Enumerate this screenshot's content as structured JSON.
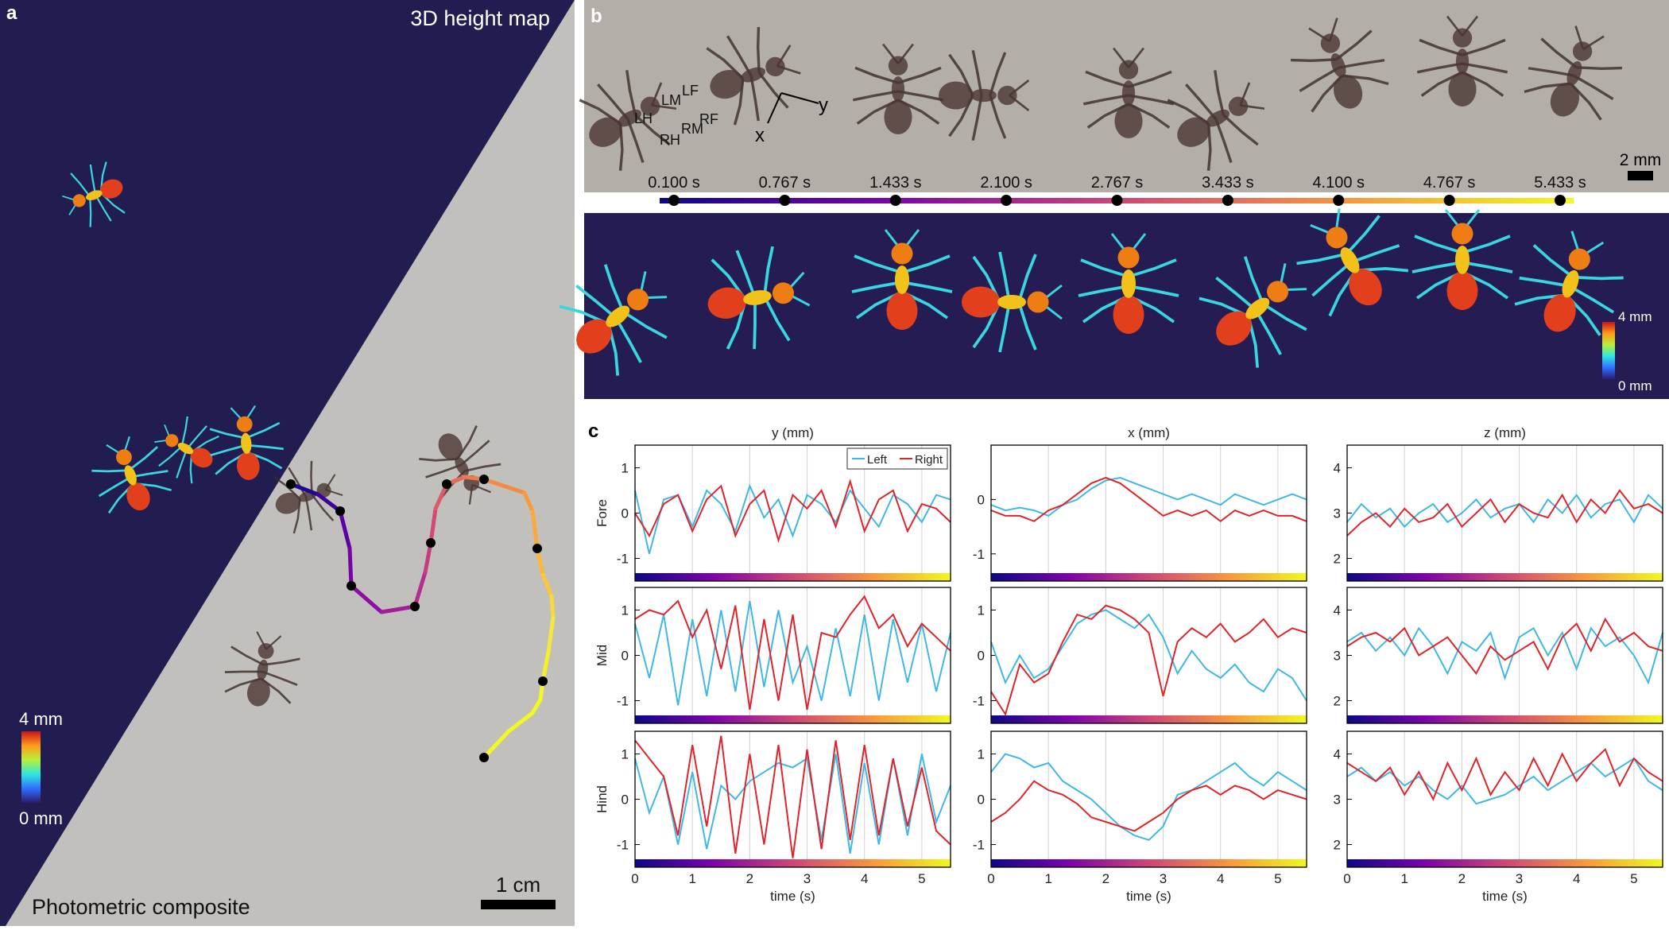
{
  "panel_a": {
    "label": "a",
    "top_text": "3D height map",
    "bottom_text": "Photometric composite",
    "scale_bar": "1 cm",
    "colorbar": {
      "max": "4 mm",
      "min": "0 mm"
    }
  },
  "panel_b": {
    "label": "b",
    "legs": [
      "LF",
      "LM",
      "LH",
      "RF",
      "RM",
      "RH"
    ],
    "axes": [
      "y",
      "x"
    ],
    "scale_bar": "2 mm",
    "times": [
      "0.100 s",
      "0.767 s",
      "1.433 s",
      "2.100 s",
      "2.767 s",
      "3.433 s",
      "4.100 s",
      "4.767 s",
      "5.433 s"
    ],
    "colorbar": {
      "max": "4 mm",
      "min": "0 mm"
    }
  },
  "panel_c": {
    "label": "c"
  },
  "chart_data": [
    {
      "type": "line",
      "title": "y (mm)",
      "ylabel": "Fore",
      "x": [
        0,
        0.25,
        0.5,
        0.75,
        1,
        1.25,
        1.5,
        1.75,
        2,
        2.25,
        2.5,
        2.75,
        3,
        3.25,
        3.5,
        3.75,
        4,
        4.25,
        4.5,
        4.75,
        5,
        5.25,
        5.5
      ],
      "xlim": [
        0,
        5.5
      ],
      "xticks": [
        0,
        1,
        2,
        3,
        4,
        5
      ],
      "xticklabels": false,
      "ylim": [
        -1.5,
        1.5
      ],
      "yticks": [
        -1,
        0,
        1
      ],
      "grid": "x",
      "legend": "upper right",
      "series": [
        {
          "name": "Left",
          "color": "#3fb8e6",
          "values": [
            0.5,
            -0.9,
            0.3,
            0.4,
            -0.3,
            0.5,
            0.2,
            -0.4,
            0.6,
            -0.1,
            0.3,
            -0.5,
            0.4,
            0.2,
            -0.2,
            0.5,
            0.1,
            -0.3,
            0.4,
            0.2,
            -0.2,
            0.4,
            0.3
          ]
        },
        {
          "name": "Right",
          "color": "#e0242b",
          "values": [
            0,
            -0.5,
            0.2,
            0.4,
            -0.4,
            0.3,
            0.6,
            -0.5,
            0.2,
            0.5,
            -0.6,
            0.4,
            0.1,
            0.5,
            -0.3,
            0.7,
            -0.4,
            0.3,
            0.5,
            -0.4,
            0.2,
            0.1,
            -0.2
          ]
        }
      ]
    },
    {
      "type": "line",
      "title": "x (mm)",
      "x": [
        0,
        0.25,
        0.5,
        0.75,
        1,
        1.25,
        1.5,
        1.75,
        2,
        2.25,
        2.5,
        2.75,
        3,
        3.25,
        3.5,
        3.75,
        4,
        4.25,
        4.5,
        4.75,
        5,
        5.25,
        5.5
      ],
      "xlim": [
        0,
        5.5
      ],
      "xticks": [
        0,
        1,
        2,
        3,
        4,
        5
      ],
      "xticklabels": false,
      "ylim": [
        -1.5,
        1.0
      ],
      "yticks": [
        -1,
        0
      ],
      "grid": "x",
      "series": [
        {
          "color": "#3fb8e6",
          "values": [
            -0.1,
            -0.2,
            -0.15,
            -0.2,
            -0.3,
            -0.1,
            0.0,
            0.2,
            0.35,
            0.4,
            0.3,
            0.2,
            0.1,
            0.0,
            0.1,
            0.0,
            -0.1,
            0.1,
            0.0,
            -0.1,
            0.0,
            0.1,
            0.0
          ]
        },
        {
          "color": "#e0242b",
          "values": [
            -0.2,
            -0.3,
            -0.3,
            -0.4,
            -0.2,
            -0.1,
            0.1,
            0.3,
            0.4,
            0.3,
            0.1,
            -0.1,
            -0.3,
            -0.2,
            -0.3,
            -0.2,
            -0.4,
            -0.2,
            -0.3,
            -0.2,
            -0.3,
            -0.3,
            -0.4
          ]
        }
      ]
    },
    {
      "type": "line",
      "title": "z (mm)",
      "x": [
        0,
        0.25,
        0.5,
        0.75,
        1,
        1.25,
        1.5,
        1.75,
        2,
        2.25,
        2.5,
        2.75,
        3,
        3.25,
        3.5,
        3.75,
        4,
        4.25,
        4.5,
        4.75,
        5,
        5.25,
        5.5
      ],
      "xlim": [
        0,
        5.5
      ],
      "xticks": [
        0,
        1,
        2,
        3,
        4,
        5
      ],
      "xticklabels": false,
      "ylim": [
        1.5,
        4.5
      ],
      "yticks": [
        2,
        3,
        4
      ],
      "grid": "x",
      "series": [
        {
          "color": "#3fb8e6",
          "values": [
            2.8,
            3.2,
            2.9,
            3.1,
            2.7,
            3.0,
            3.2,
            2.8,
            3.0,
            3.3,
            2.9,
            3.1,
            3.2,
            2.8,
            3.3,
            3.0,
            3.4,
            2.9,
            3.2,
            3.3,
            2.8,
            3.4,
            3.1
          ]
        },
        {
          "color": "#e0242b",
          "values": [
            2.5,
            2.8,
            3.0,
            2.7,
            3.1,
            2.8,
            2.9,
            3.2,
            2.7,
            3.0,
            3.3,
            2.8,
            3.2,
            3.0,
            2.9,
            3.4,
            2.8,
            3.3,
            3.0,
            3.5,
            3.1,
            3.2,
            3.0
          ]
        }
      ]
    },
    {
      "type": "line",
      "ylabel": "Mid",
      "x": [
        0,
        0.25,
        0.5,
        0.75,
        1,
        1.25,
        1.5,
        1.75,
        2,
        2.25,
        2.5,
        2.75,
        3,
        3.25,
        3.5,
        3.75,
        4,
        4.25,
        4.5,
        4.75,
        5,
        5.25,
        5.5
      ],
      "xlim": [
        0,
        5.5
      ],
      "xticks": [
        0,
        1,
        2,
        3,
        4,
        5
      ],
      "xticklabels": false,
      "ylim": [
        -1.5,
        1.5
      ],
      "yticks": [
        -1,
        0,
        1
      ],
      "grid": "x",
      "series": [
        {
          "color": "#3fb8e6",
          "values": [
            0.7,
            -0.5,
            0.9,
            -1.1,
            0.8,
            -0.9,
            1.0,
            -0.8,
            1.2,
            -0.7,
            1.0,
            -0.6,
            0.2,
            -1.0,
            0.6,
            -0.9,
            0.9,
            -1.0,
            0.8,
            -0.6,
            0.7,
            -0.8,
            0.5
          ]
        },
        {
          "color": "#e0242b",
          "values": [
            0.8,
            1.0,
            0.9,
            1.2,
            0.4,
            1.0,
            -0.3,
            1.1,
            -1.2,
            0.8,
            -1.0,
            0.9,
            -1.2,
            0.5,
            0.4,
            0.9,
            1.3,
            0.6,
            0.9,
            0.2,
            0.7,
            0.4,
            0.1
          ]
        }
      ]
    },
    {
      "type": "line",
      "x": [
        0,
        0.25,
        0.5,
        0.75,
        1,
        1.25,
        1.5,
        1.75,
        2,
        2.25,
        2.5,
        2.75,
        3,
        3.25,
        3.5,
        3.75,
        4,
        4.25,
        4.5,
        4.75,
        5,
        5.25,
        5.5
      ],
      "xlim": [
        0,
        5.5
      ],
      "xticks": [
        0,
        1,
        2,
        3,
        4,
        5
      ],
      "xticklabels": false,
      "ylim": [
        -1.5,
        1.5
      ],
      "yticks": [
        -1,
        0,
        1
      ],
      "grid": "x",
      "series": [
        {
          "color": "#3fb8e6",
          "values": [
            0.3,
            -0.6,
            0.0,
            -0.5,
            -0.3,
            0.2,
            0.7,
            0.9,
            1.0,
            0.8,
            0.6,
            0.9,
            0.4,
            -0.4,
            0.1,
            -0.3,
            -0.5,
            -0.2,
            -0.6,
            -0.8,
            -0.3,
            -0.5,
            -1.0
          ]
        },
        {
          "color": "#e0242b",
          "values": [
            -0.8,
            -1.3,
            -0.2,
            -0.6,
            -0.4,
            0.3,
            0.9,
            0.8,
            1.1,
            1.0,
            0.8,
            0.5,
            -0.9,
            0.3,
            0.6,
            0.4,
            0.7,
            0.3,
            0.5,
            0.8,
            0.4,
            0.6,
            0.5
          ]
        }
      ]
    },
    {
      "type": "line",
      "x": [
        0,
        0.25,
        0.5,
        0.75,
        1,
        1.25,
        1.5,
        1.75,
        2,
        2.25,
        2.5,
        2.75,
        3,
        3.25,
        3.5,
        3.75,
        4,
        4.25,
        4.5,
        4.75,
        5,
        5.25,
        5.5
      ],
      "xlim": [
        0,
        5.5
      ],
      "xticks": [
        0,
        1,
        2,
        3,
        4,
        5
      ],
      "xticklabels": false,
      "ylim": [
        1.5,
        4.5
      ],
      "yticks": [
        2,
        3,
        4
      ],
      "grid": "x",
      "series": [
        {
          "color": "#3fb8e6",
          "values": [
            3.3,
            3.5,
            3.1,
            3.4,
            3.0,
            3.6,
            3.2,
            2.6,
            3.3,
            3.1,
            3.5,
            2.5,
            3.4,
            3.6,
            3.0,
            3.5,
            2.7,
            3.6,
            3.2,
            3.4,
            3.0,
            2.4,
            3.5
          ]
        },
        {
          "color": "#e0242b",
          "values": [
            3.2,
            3.4,
            3.5,
            3.3,
            3.6,
            3.0,
            3.2,
            3.4,
            3.0,
            2.6,
            3.2,
            2.9,
            3.1,
            3.3,
            2.7,
            3.4,
            3.7,
            3.1,
            3.8,
            3.3,
            3.5,
            3.2,
            3.1
          ]
        }
      ]
    },
    {
      "type": "line",
      "ylabel": "Hind",
      "xlabel": "time (s)",
      "x": [
        0,
        0.25,
        0.5,
        0.75,
        1,
        1.25,
        1.5,
        1.75,
        2,
        2.25,
        2.5,
        2.75,
        3,
        3.25,
        3.5,
        3.75,
        4,
        4.25,
        4.5,
        4.75,
        5,
        5.25,
        5.5
      ],
      "xlim": [
        0,
        5.5
      ],
      "xticks": [
        0,
        1,
        2,
        3,
        4,
        5
      ],
      "ylim": [
        -1.5,
        1.5
      ],
      "yticks": [
        -1,
        0,
        1
      ],
      "grid": "x",
      "series": [
        {
          "color": "#3fb8e6",
          "values": [
            0.9,
            -0.3,
            0.5,
            -1.0,
            0.6,
            -1.1,
            0.3,
            0.0,
            0.4,
            0.6,
            0.8,
            0.7,
            0.9,
            -0.9,
            1.0,
            -1.2,
            0.8,
            -1.0,
            0.9,
            -0.8,
            1.0,
            -0.5,
            0.3
          ]
        },
        {
          "color": "#e0242b",
          "values": [
            1.3,
            0.9,
            0.5,
            -0.8,
            1.2,
            -0.6,
            1.4,
            -1.2,
            1.0,
            -1.0,
            1.2,
            -1.3,
            1.1,
            -1.1,
            1.3,
            -0.9,
            1.2,
            -0.8,
            0.9,
            -0.6,
            0.7,
            -0.7,
            -1.0
          ]
        }
      ]
    },
    {
      "type": "line",
      "xlabel": "time (s)",
      "x": [
        0,
        0.25,
        0.5,
        0.75,
        1,
        1.25,
        1.5,
        1.75,
        2,
        2.25,
        2.5,
        2.75,
        3,
        3.25,
        3.5,
        3.75,
        4,
        4.25,
        4.5,
        4.75,
        5,
        5.25,
        5.5
      ],
      "xlim": [
        0,
        5.5
      ],
      "xticks": [
        0,
        1,
        2,
        3,
        4,
        5
      ],
      "ylim": [
        -1.5,
        1.5
      ],
      "yticks": [
        -1,
        0,
        1
      ],
      "grid": "x",
      "series": [
        {
          "color": "#3fb8e6",
          "values": [
            0.6,
            1.0,
            0.9,
            0.7,
            0.8,
            0.4,
            0.2,
            0.0,
            -0.3,
            -0.6,
            -0.8,
            -0.9,
            -0.6,
            0.1,
            0.2,
            0.4,
            0.6,
            0.8,
            0.5,
            0.3,
            0.6,
            0.4,
            0.2
          ]
        },
        {
          "color": "#e0242b",
          "values": [
            -0.5,
            -0.3,
            0.0,
            0.4,
            0.2,
            0.1,
            -0.1,
            -0.4,
            -0.5,
            -0.6,
            -0.7,
            -0.5,
            -0.3,
            0.0,
            0.2,
            0.3,
            0.1,
            0.3,
            0.2,
            0.0,
            0.2,
            0.1,
            0.0
          ]
        }
      ]
    },
    {
      "type": "line",
      "xlabel": "time (s)",
      "x": [
        0,
        0.25,
        0.5,
        0.75,
        1,
        1.25,
        1.5,
        1.75,
        2,
        2.25,
        2.5,
        2.75,
        3,
        3.25,
        3.5,
        3.75,
        4,
        4.25,
        4.5,
        4.75,
        5,
        5.25,
        5.5
      ],
      "xlim": [
        0,
        5.5
      ],
      "xticks": [
        0,
        1,
        2,
        3,
        4,
        5
      ],
      "ylim": [
        1.5,
        4.5
      ],
      "yticks": [
        2,
        3,
        4
      ],
      "grid": "x",
      "series": [
        {
          "color": "#3fb8e6",
          "values": [
            3.5,
            3.7,
            3.4,
            3.6,
            3.3,
            3.5,
            3.2,
            3.0,
            3.3,
            2.9,
            3.0,
            3.1,
            3.3,
            3.5,
            3.2,
            3.4,
            3.6,
            3.8,
            3.5,
            3.7,
            3.9,
            3.4,
            3.2
          ]
        },
        {
          "color": "#e0242b",
          "values": [
            3.8,
            3.6,
            3.4,
            3.7,
            3.1,
            3.6,
            3.0,
            3.8,
            3.2,
            3.9,
            3.1,
            3.6,
            3.2,
            3.9,
            3.3,
            4.0,
            3.4,
            3.8,
            4.1,
            3.3,
            3.9,
            3.6,
            3.4
          ]
        }
      ]
    }
  ]
}
